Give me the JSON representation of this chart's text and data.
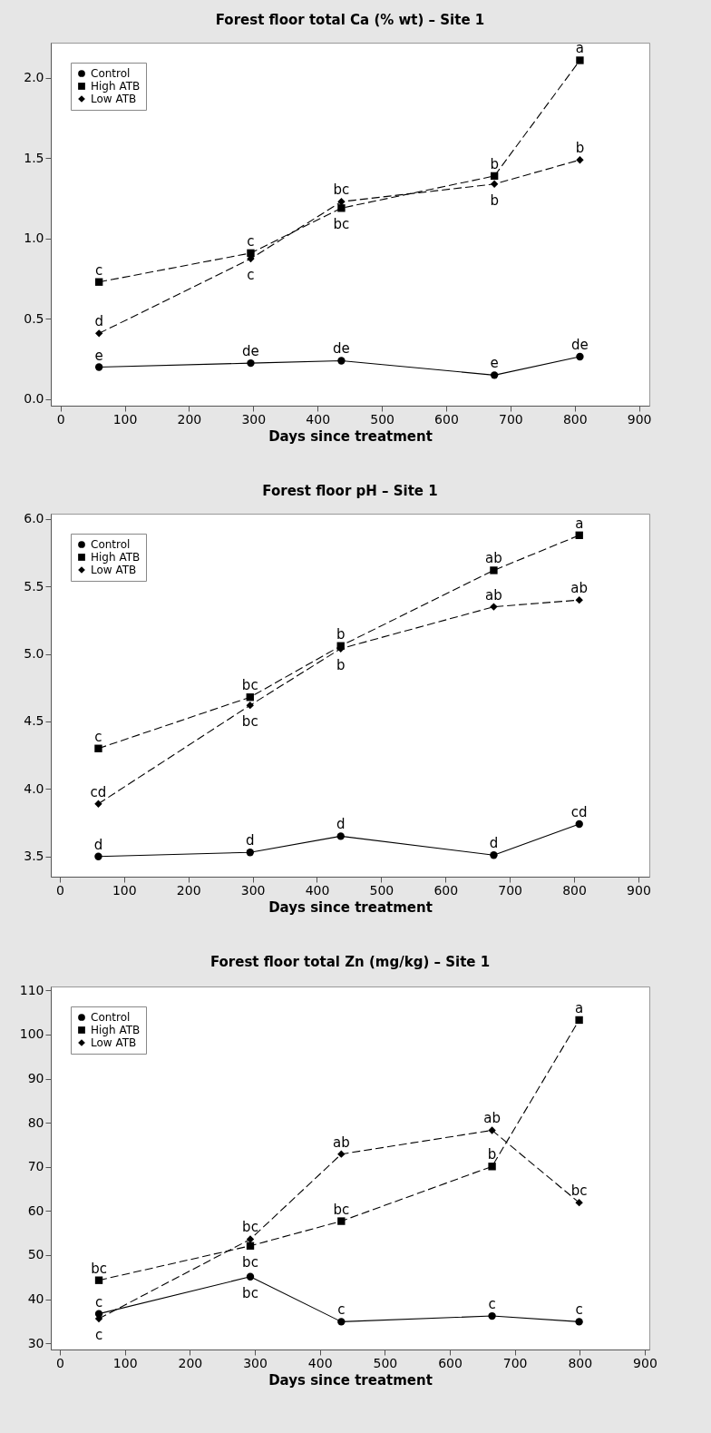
{
  "chart_data": [
    {
      "type": "line",
      "title": "Forest floor total Ca (% wt) – Site 1",
      "xlabel": "Days since treatment",
      "x": [
        60,
        296,
        437,
        675,
        808
      ],
      "xlim": [
        -15,
        916
      ],
      "xticks": [
        0,
        100,
        200,
        300,
        400,
        500,
        600,
        700,
        800,
        900
      ],
      "ylim": [
        -0.04,
        2.22
      ],
      "yticks": [
        {
          "value": 0,
          "label": "0.0"
        },
        0.5,
        {
          "value": 1,
          "label": "1.0"
        },
        1.5,
        {
          "value": 2,
          "label": "2.0"
        }
      ],
      "grid": false,
      "legend": "top left",
      "series": [
        {
          "name": "Control",
          "color": "#000000",
          "marker": "circle",
          "line_style": "solid",
          "values": [
            0.2,
            0.225,
            0.24,
            0.15,
            0.265
          ]
        },
        {
          "name": "High ATB",
          "color": "#000000",
          "marker": "square",
          "line_style": "dashed",
          "values": [
            0.73,
            0.91,
            1.19,
            1.39,
            2.11
          ]
        },
        {
          "name": "Low ATB",
          "color": "#000000",
          "marker": "diamond",
          "line_style": "dashed",
          "values": [
            0.41,
            0.875,
            1.23,
            1.34,
            1.49
          ]
        }
      ],
      "annotations": [
        {
          "text": "e",
          "x": 60,
          "y": 0.2
        },
        {
          "text": "de",
          "x": 296,
          "y": 0.225
        },
        {
          "text": "de",
          "x": 437,
          "y": 0.24
        },
        {
          "text": "e",
          "x": 675,
          "y": 0.15
        },
        {
          "text": "de",
          "x": 808,
          "y": 0.265
        },
        {
          "text": "c",
          "x": 60,
          "y": 0.73
        },
        {
          "text": "c",
          "x": 296,
          "y": 0.91
        },
        {
          "text": "bc",
          "x": 437,
          "y": 1.19
        },
        {
          "text": "b",
          "x": 675,
          "y": 1.39
        },
        {
          "text": "a",
          "x": 808,
          "y": 2.11
        },
        {
          "text": "d",
          "x": 60,
          "y": 0.41
        },
        {
          "text": "c",
          "x": 296,
          "y": 0.875
        },
        {
          "text": "bc",
          "x": 437,
          "y": 1.23
        },
        {
          "text": "b",
          "x": 675,
          "y": 1.34
        },
        {
          "text": "b",
          "x": 808,
          "y": 1.49
        }
      ]
    },
    {
      "type": "line",
      "title": "Forest floor pH – Site 1",
      "xlabel": "Days since treatment",
      "x": [
        60,
        296,
        437,
        675,
        808
      ],
      "xlim": [
        -14,
        917
      ],
      "xticks": [
        0,
        100,
        200,
        300,
        400,
        500,
        600,
        700,
        800,
        900
      ],
      "ylim": [
        3.35,
        6.04
      ],
      "yticks": [
        3.5,
        {
          "value": 4,
          "label": "4.0"
        },
        4.5,
        {
          "value": 5,
          "label": "5.0"
        },
        5.5,
        {
          "value": 6,
          "label": "6.0"
        }
      ],
      "grid": false,
      "legend": "top left",
      "series": [
        {
          "name": "Control",
          "color": "#000000",
          "marker": "circle",
          "line_style": "solid",
          "values": [
            3.5,
            3.53,
            3.65,
            3.51,
            3.74
          ]
        },
        {
          "name": "High ATB",
          "color": "#000000",
          "marker": "square",
          "line_style": "dashed",
          "values": [
            4.3,
            4.68,
            5.06,
            5.62,
            5.88
          ]
        },
        {
          "name": "Low ATB",
          "color": "#000000",
          "marker": "diamond",
          "line_style": "dashed",
          "values": [
            3.89,
            4.62,
            5.04,
            5.35,
            5.4
          ]
        }
      ],
      "annotations": [
        {
          "text": "d",
          "x": 60,
          "y": 3.5
        },
        {
          "text": "d",
          "x": 296,
          "y": 3.53
        },
        {
          "text": "d",
          "x": 437,
          "y": 3.65
        },
        {
          "text": "d",
          "x": 675,
          "y": 3.51
        },
        {
          "text": "cd",
          "x": 808,
          "y": 3.74
        },
        {
          "text": "c",
          "x": 60,
          "y": 4.3
        },
        {
          "text": "bc",
          "x": 296,
          "y": 4.68
        },
        {
          "text": "b",
          "x": 437,
          "y": 5.06
        },
        {
          "text": "ab",
          "x": 675,
          "y": 5.62
        },
        {
          "text": "a",
          "x": 808,
          "y": 5.88
        },
        {
          "text": "cd",
          "x": 60,
          "y": 3.89
        },
        {
          "text": "bc",
          "x": 296,
          "y": 4.62
        },
        {
          "text": "b",
          "x": 437,
          "y": 5.04
        },
        {
          "text": "ab",
          "x": 675,
          "y": 5.35
        },
        {
          "text": "ab",
          "x": 808,
          "y": 5.4
        }
      ]
    },
    {
      "type": "line",
      "title": "Forest floor total Zn (mg/kg) – Site 1",
      "xlabel": "Days since treatment",
      "x": [
        60,
        293,
        433,
        665,
        799
      ],
      "xlim": [
        -14,
        907
      ],
      "xticks": [
        0,
        100,
        200,
        300,
        400,
        500,
        600,
        700,
        800,
        900
      ],
      "ylim": [
        28.6,
        110.9
      ],
      "yticks": [
        30,
        40,
        50,
        60,
        70,
        80,
        90,
        100,
        110
      ],
      "grid": false,
      "legend": "top left",
      "series": [
        {
          "name": "Control",
          "color": "#000000",
          "marker": "circle",
          "line_style": "solid",
          "values": [
            36.7,
            45.1,
            34.9,
            36.2,
            34.9
          ]
        },
        {
          "name": "High ATB",
          "color": "#000000",
          "marker": "square",
          "line_style": "dashed",
          "values": [
            44.3,
            52.1,
            57.7,
            70.1,
            103.3
          ]
        },
        {
          "name": "Low ATB",
          "color": "#000000",
          "marker": "diamond",
          "line_style": "dashed",
          "values": [
            35.6,
            53.6,
            72.9,
            78.3,
            61.9
          ]
        }
      ],
      "annotations": [
        {
          "text": "c",
          "x": 60,
          "y": 36.7
        },
        {
          "text": "bc",
          "x": 293,
          "y": 45.1
        },
        {
          "text": "c",
          "x": 433,
          "y": 34.9
        },
        {
          "text": "c",
          "x": 665,
          "y": 36.2
        },
        {
          "text": "c",
          "x": 799,
          "y": 34.9
        },
        {
          "text": "bc",
          "x": 60,
          "y": 44.3
        },
        {
          "text": "bc",
          "x": 293,
          "y": 52.1
        },
        {
          "text": "bc",
          "x": 433,
          "y": 57.7
        },
        {
          "text": "b",
          "x": 665,
          "y": 70.1
        },
        {
          "text": "a",
          "x": 799,
          "y": 103.3
        },
        {
          "text": "c",
          "x": 60,
          "y": 35.6
        },
        {
          "text": "bc",
          "x": 293,
          "y": 53.6
        },
        {
          "text": "ab",
          "x": 433,
          "y": 72.9
        },
        {
          "text": "ab",
          "x": 665,
          "y": 78.3
        },
        {
          "text": "bc",
          "x": 799,
          "y": 61.9
        }
      ]
    }
  ]
}
